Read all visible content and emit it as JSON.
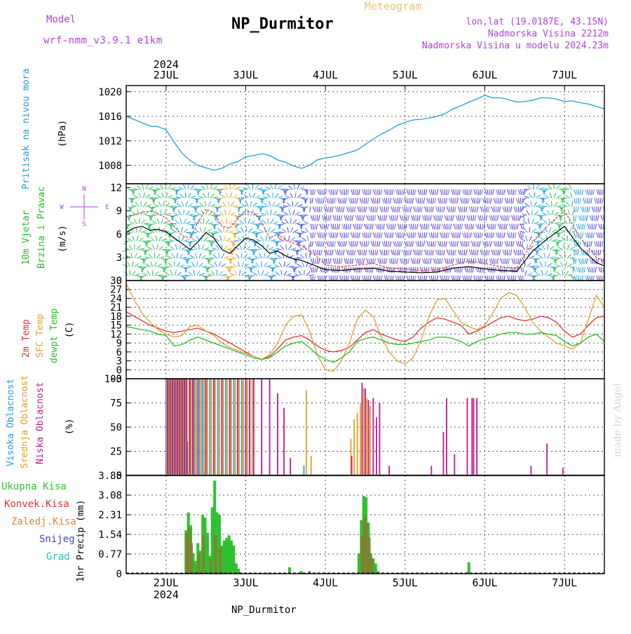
{
  "header": {
    "model_label": "Model",
    "model_name": "wrf-nmm_v3.9.1 e1km",
    "station": "NP_Durmitor",
    "product": "Meteogram",
    "lonlat": "lon,lat (19.0187E, 43.15N)",
    "elevation": "Nadmorska Visina 2212m",
    "model_elevation": "Nadmorska Visina u modelu 2024.23m",
    "footer": "NP_Durmitor",
    "watermark": "made by Angel"
  },
  "time_axis": {
    "year_label": "2024",
    "day_labels": [
      "2JUL",
      "3JUL",
      "4JUL",
      "5JUL",
      "6JUL",
      "7JUL"
    ],
    "range_days": [
      1.5,
      7.5
    ]
  },
  "colors": {
    "pressure": "#1aa0e0",
    "t2m": "#e83030",
    "tsfc": "#e0a030",
    "dewpoint": "#20c020",
    "high_cloud": "#1aa0e0",
    "mid_cloud": "#e0a020",
    "low_cloud": "#c01890",
    "total_precip": "#30c030",
    "conv_precip": "#e03030",
    "frozen_precip": "#f08030",
    "snow": "#4040e0",
    "graupel": "#20c0c0"
  },
  "chart_data": [
    {
      "type": "line",
      "panel": "pressure",
      "ylabel_main": "Pritisak na nivou mora",
      "ylabel_unit": "(hPa)",
      "ylim": [
        1005,
        1021
      ],
      "yticks": [
        1008,
        1012,
        1016,
        1020
      ],
      "grid": true,
      "x": [
        1.5,
        1.65,
        1.8,
        1.9,
        2.0,
        2.1,
        2.2,
        2.3,
        2.4,
        2.5,
        2.6,
        2.7,
        2.8,
        2.9,
        3.0,
        3.1,
        3.2,
        3.3,
        3.4,
        3.5,
        3.6,
        3.7,
        3.8,
        3.9,
        4.0,
        4.1,
        4.2,
        4.3,
        4.4,
        4.5,
        4.6,
        4.7,
        4.8,
        4.9,
        5.0,
        5.1,
        5.2,
        5.3,
        5.4,
        5.5,
        5.6,
        5.7,
        5.8,
        5.9,
        6.0,
        6.1,
        6.2,
        6.3,
        6.4,
        6.5,
        6.6,
        6.7,
        6.8,
        6.9,
        7.0,
        7.1,
        7.2,
        7.3,
        7.4,
        7.5
      ],
      "series": [
        {
          "values": [
            1016,
            1015.2,
            1014.4,
            1014.3,
            1013.8,
            1011.8,
            1010.0,
            1008.8,
            1008.0,
            1007.6,
            1007.2,
            1007.5,
            1008.2,
            1008.6,
            1009.4,
            1009.6,
            1009.9,
            1009.6,
            1008.9,
            1008.5,
            1007.9,
            1007.5,
            1008.0,
            1008.9,
            1009.2,
            1009.4,
            1009.7,
            1010.1,
            1010.5,
            1011.4,
            1012.3,
            1013.1,
            1013.7,
            1014.5,
            1015.0,
            1015.4,
            1015.5,
            1015.7,
            1016.0,
            1016.4,
            1017.2,
            1017.7,
            1018.3,
            1018.8,
            1019.4,
            1019.0,
            1019.0,
            1018.7,
            1018.3,
            1018.4,
            1018.6,
            1019.0,
            1019.0,
            1018.8,
            1018.4,
            1018.5,
            1018.2,
            1018.0,
            1017.6,
            1017.2
          ]
        }
      ]
    },
    {
      "type": "line",
      "panel": "wind",
      "ylabel_main": "10m Vjetar",
      "ylabel_second": "Brzina i Pravac",
      "ylabel_unit": "(m/s)",
      "compass": {
        "n": "N",
        "e": "E",
        "w": "W",
        "s": "S"
      },
      "ylim": [
        0,
        12.5
      ],
      "yticks": [
        0,
        3,
        6,
        9,
        12
      ],
      "x": [
        1.5,
        1.6,
        1.7,
        1.8,
        1.9,
        2.0,
        2.1,
        2.2,
        2.3,
        2.4,
        2.5,
        2.6,
        2.7,
        2.8,
        2.9,
        3.0,
        3.1,
        3.2,
        3.3,
        3.4,
        3.5,
        3.6,
        3.7,
        3.8,
        3.9,
        4.0,
        4.2,
        4.4,
        4.6,
        4.8,
        5.0,
        5.2,
        5.4,
        5.6,
        5.8,
        6.0,
        6.2,
        6.4,
        6.6,
        6.8,
        7.0,
        7.2,
        7.4,
        7.5
      ],
      "series": [
        {
          "name": "gust",
          "values": [
            8.2,
            8.5,
            8.8,
            9.0,
            8.6,
            8.1,
            7.0,
            5.8,
            5.5,
            7.5,
            9.2,
            8.8,
            7.0,
            6.8,
            8.0,
            9.0,
            8.8,
            7.5,
            5.5,
            6.0,
            5.2,
            4.8,
            4.5,
            3.8,
            3.0,
            2.0,
            1.8,
            2.0,
            2.2,
            1.6,
            1.5,
            1.3,
            1.4,
            2.0,
            2.5,
            2.2,
            1.8,
            1.6,
            5.0,
            7.2,
            9.0,
            5.5,
            3.0,
            2.5
          ]
        },
        {
          "name": "speed",
          "values": [
            6.2,
            6.8,
            7.0,
            6.5,
            6.6,
            6.3,
            5.5,
            4.8,
            4.0,
            5.0,
            6.2,
            5.5,
            4.0,
            3.5,
            4.5,
            5.5,
            5.2,
            4.5,
            3.5,
            3.8,
            3.2,
            2.8,
            2.6,
            2.2,
            1.8,
            1.4,
            1.3,
            1.5,
            1.6,
            1.2,
            1.1,
            1.0,
            1.1,
            1.6,
            1.8,
            1.5,
            1.3,
            1.2,
            3.8,
            5.5,
            7.0,
            4.2,
            2.3,
            1.9
          ]
        }
      ]
    },
    {
      "type": "line",
      "panel": "temperature",
      "ylabel_main": "2m Temp",
      "ylabel_second": "SFC Temp",
      "ylabel_third": "dewpt Temp",
      "ylabel_unit": "(C)",
      "ylim": [
        -3,
        30
      ],
      "yticks": [
        -3,
        0,
        3,
        6,
        9,
        12,
        15,
        18,
        21,
        24,
        27,
        30
      ],
      "grid": true,
      "x": [
        1.5,
        1.6,
        1.7,
        1.8,
        1.9,
        2.0,
        2.1,
        2.2,
        2.3,
        2.4,
        2.5,
        2.6,
        2.7,
        2.8,
        2.9,
        3.0,
        3.1,
        3.2,
        3.3,
        3.4,
        3.5,
        3.6,
        3.7,
        3.8,
        3.9,
        4.0,
        4.1,
        4.2,
        4.3,
        4.4,
        4.5,
        4.6,
        4.7,
        4.8,
        4.9,
        5.0,
        5.1,
        5.2,
        5.3,
        5.4,
        5.5,
        5.6,
        5.7,
        5.8,
        5.9,
        6.0,
        6.1,
        6.2,
        6.3,
        6.4,
        6.5,
        6.6,
        6.7,
        6.8,
        6.9,
        7.0,
        7.1,
        7.2,
        7.3,
        7.4,
        7.5
      ],
      "series": [
        {
          "name": "2m Temp",
          "values": [
            19.5,
            18.0,
            16.5,
            15.0,
            14.0,
            13.0,
            12.5,
            13.0,
            13.5,
            14.0,
            13.0,
            12.0,
            10.5,
            9.0,
            7.5,
            6.0,
            4.5,
            3.5,
            4.5,
            7.0,
            10.0,
            11.0,
            11.5,
            10.0,
            8.0,
            6.5,
            6.0,
            6.5,
            7.5,
            10.0,
            12.5,
            13.5,
            12.0,
            11.0,
            10.0,
            9.5,
            11.0,
            14.0,
            16.0,
            17.5,
            17.0,
            16.0,
            15.0,
            12.0,
            13.0,
            14.5,
            16.0,
            17.5,
            18.0,
            17.0,
            16.5,
            17.0,
            18.0,
            17.5,
            16.0,
            13.0,
            11.0,
            12.0,
            15.0,
            17.5,
            18.0
          ]
        },
        {
          "name": "SFC Temp",
          "values": [
            29.0,
            23.5,
            19.0,
            16.0,
            13.5,
            12.0,
            11.0,
            11.5,
            14.5,
            15.0,
            13.0,
            11.5,
            9.0,
            7.5,
            6.5,
            5.5,
            4.5,
            3.5,
            5.0,
            9.0,
            15.0,
            18.0,
            18.5,
            13.0,
            5.0,
            0.0,
            -0.5,
            3.0,
            9.0,
            17.0,
            20.0,
            18.0,
            11.0,
            6.0,
            3.0,
            2.0,
            4.0,
            10.0,
            18.0,
            23.5,
            24.0,
            20.0,
            16.0,
            14.5,
            13.5,
            15.0,
            19.0,
            24.0,
            26.0,
            25.0,
            21.0,
            16.0,
            13.0,
            11.0,
            9.0,
            8.0,
            7.0,
            9.0,
            17.0,
            25.0,
            21.0
          ]
        },
        {
          "name": "dewpt Temp",
          "values": [
            14.5,
            14.0,
            13.5,
            13.0,
            12.0,
            11.5,
            8.0,
            8.5,
            10.0,
            11.0,
            10.0,
            9.0,
            8.0,
            7.0,
            6.0,
            5.0,
            4.0,
            3.5,
            4.0,
            6.0,
            8.0,
            9.0,
            9.5,
            7.5,
            5.0,
            3.5,
            2.5,
            4.0,
            6.0,
            9.5,
            10.5,
            11.0,
            10.0,
            9.0,
            8.5,
            8.5,
            9.0,
            9.5,
            10.0,
            11.0,
            11.0,
            10.5,
            9.5,
            8.0,
            9.5,
            10.5,
            11.0,
            12.0,
            12.5,
            12.5,
            12.0,
            12.0,
            12.5,
            12.0,
            11.5,
            9.5,
            8.0,
            9.0,
            11.0,
            12.0,
            9.5
          ]
        }
      ]
    },
    {
      "type": "bar",
      "panel": "clouds",
      "ylabel_main": "Visoka Oblacnost",
      "ylabel_second": "Srednja Oblacnost",
      "ylabel_third": "Niska Oblacnost",
      "ylabel_unit": "(%)",
      "ylim": [
        0,
        100
      ],
      "yticks": [
        0,
        25,
        50,
        75,
        100
      ],
      "grid": true,
      "series": [
        {
          "name": "Visoka Oblacnost",
          "x": [
            2.0,
            2.03,
            2.06,
            2.09,
            2.12,
            2.15,
            2.18,
            2.21,
            2.24,
            2.27,
            2.3,
            2.33,
            2.36,
            2.42,
            2.46,
            2.5,
            2.55,
            2.6,
            2.65,
            2.7,
            2.75,
            2.8,
            2.85,
            2.9,
            2.95,
            3.0,
            3.05,
            3.73
          ],
          "values": [
            100,
            100,
            100,
            100,
            100,
            100,
            100,
            100,
            100,
            35,
            100,
            100,
            100,
            100,
            100,
            100,
            100,
            100,
            100,
            100,
            100,
            100,
            100,
            100,
            100,
            100,
            100,
            10
          ]
        },
        {
          "name": "Srednja Oblacnost",
          "x": [
            2.01,
            2.04,
            2.07,
            2.1,
            2.13,
            2.16,
            2.19,
            2.22,
            2.25,
            2.29,
            2.32,
            2.35,
            2.38,
            2.44,
            2.48,
            2.52,
            2.57,
            2.62,
            2.67,
            2.72,
            2.77,
            2.82,
            2.87,
            2.92,
            2.97,
            3.02,
            3.08,
            3.76,
            3.82,
            4.32,
            4.36,
            4.4,
            4.44,
            4.48,
            4.52,
            4.56
          ],
          "values": [
            100,
            100,
            100,
            100,
            100,
            100,
            100,
            100,
            100,
            100,
            100,
            100,
            100,
            100,
            100,
            100,
            100,
            100,
            100,
            100,
            100,
            100,
            100,
            100,
            100,
            100,
            100,
            88,
            20,
            38,
            58,
            65,
            75,
            90,
            80,
            72
          ]
        },
        {
          "name": "Niska Oblacnost",
          "x": [
            2.02,
            2.05,
            2.08,
            2.11,
            2.14,
            2.17,
            2.2,
            2.23,
            2.26,
            2.3,
            2.34,
            2.4,
            2.5,
            2.6,
            2.7,
            2.8,
            2.9,
            3.0,
            3.05,
            3.1,
            3.2,
            3.3,
            3.4,
            3.48,
            3.56,
            4.33,
            4.46,
            4.5,
            4.54,
            4.6,
            4.64,
            4.68,
            4.8,
            5.33,
            5.48,
            5.52,
            5.62,
            5.78,
            5.84,
            5.86,
            5.9,
            6.58,
            6.78,
            6.98
          ],
          "values": [
            100,
            100,
            100,
            100,
            100,
            100,
            100,
            100,
            100,
            100,
            100,
            100,
            100,
            100,
            100,
            100,
            100,
            100,
            100,
            100,
            100,
            100,
            85,
            70,
            18,
            20,
            96,
            90,
            78,
            80,
            60,
            75,
            10,
            10,
            45,
            80,
            22,
            80,
            80,
            80,
            80,
            10,
            33,
            8
          ]
        }
      ]
    },
    {
      "type": "bar",
      "panel": "precip",
      "legend": [
        "Ukupna Kisa",
        "Konvek.Kisa",
        "Zaledj.Kisa",
        "Snijeg",
        "Grad"
      ],
      "ylabel_unit": "1hr Precip (mm)",
      "ylim": [
        0,
        3.85
      ],
      "yticks": [
        0,
        0.77,
        1.54,
        2.31,
        3.08,
        3.85
      ],
      "grid": true,
      "series": [
        {
          "name": "Ukupna Kisa",
          "x": [
            2.25,
            2.28,
            2.31,
            2.34,
            2.37,
            2.4,
            2.43,
            2.46,
            2.49,
            2.52,
            2.55,
            2.58,
            2.61,
            2.64,
            2.67,
            2.7,
            2.73,
            2.76,
            2.79,
            2.82,
            2.85,
            2.88,
            2.91,
            2.94,
            3.55,
            3.7,
            3.8,
            4.42,
            4.45,
            4.48,
            4.51,
            4.54,
            4.57,
            4.6,
            4.63,
            4.66,
            5.8
          ],
          "values": [
            1.7,
            2.4,
            1.9,
            0.8,
            0.5,
            1.2,
            0.9,
            2.3,
            2.2,
            1.6,
            0.7,
            2.6,
            3.65,
            2.4,
            2.3,
            1.1,
            1.3,
            1.4,
            1.5,
            1.3,
            1.1,
            0.4,
            0.2,
            0.05,
            0.25,
            0.1,
            0.1,
            0.8,
            2.1,
            3.05,
            3.0,
            2.0,
            0.8,
            0.6,
            0.4,
            0.1,
            0.45
          ]
        },
        {
          "name": "Konvek.Kisa",
          "x": [
            2.26,
            2.29,
            2.32,
            2.41,
            2.47,
            2.56,
            2.62,
            2.68,
            4.46,
            4.49,
            4.52,
            4.55,
            4.58
          ],
          "values": [
            1.6,
            1.8,
            1.2,
            0.8,
            1.5,
            0.6,
            1.5,
            1.0,
            1.5,
            2.2,
            2.0,
            1.4,
            0.6
          ]
        },
        {
          "name": "Zaledj.Kisa",
          "values": []
        },
        {
          "name": "Snijeg",
          "values": []
        },
        {
          "name": "Grad",
          "values": []
        }
      ]
    }
  ]
}
